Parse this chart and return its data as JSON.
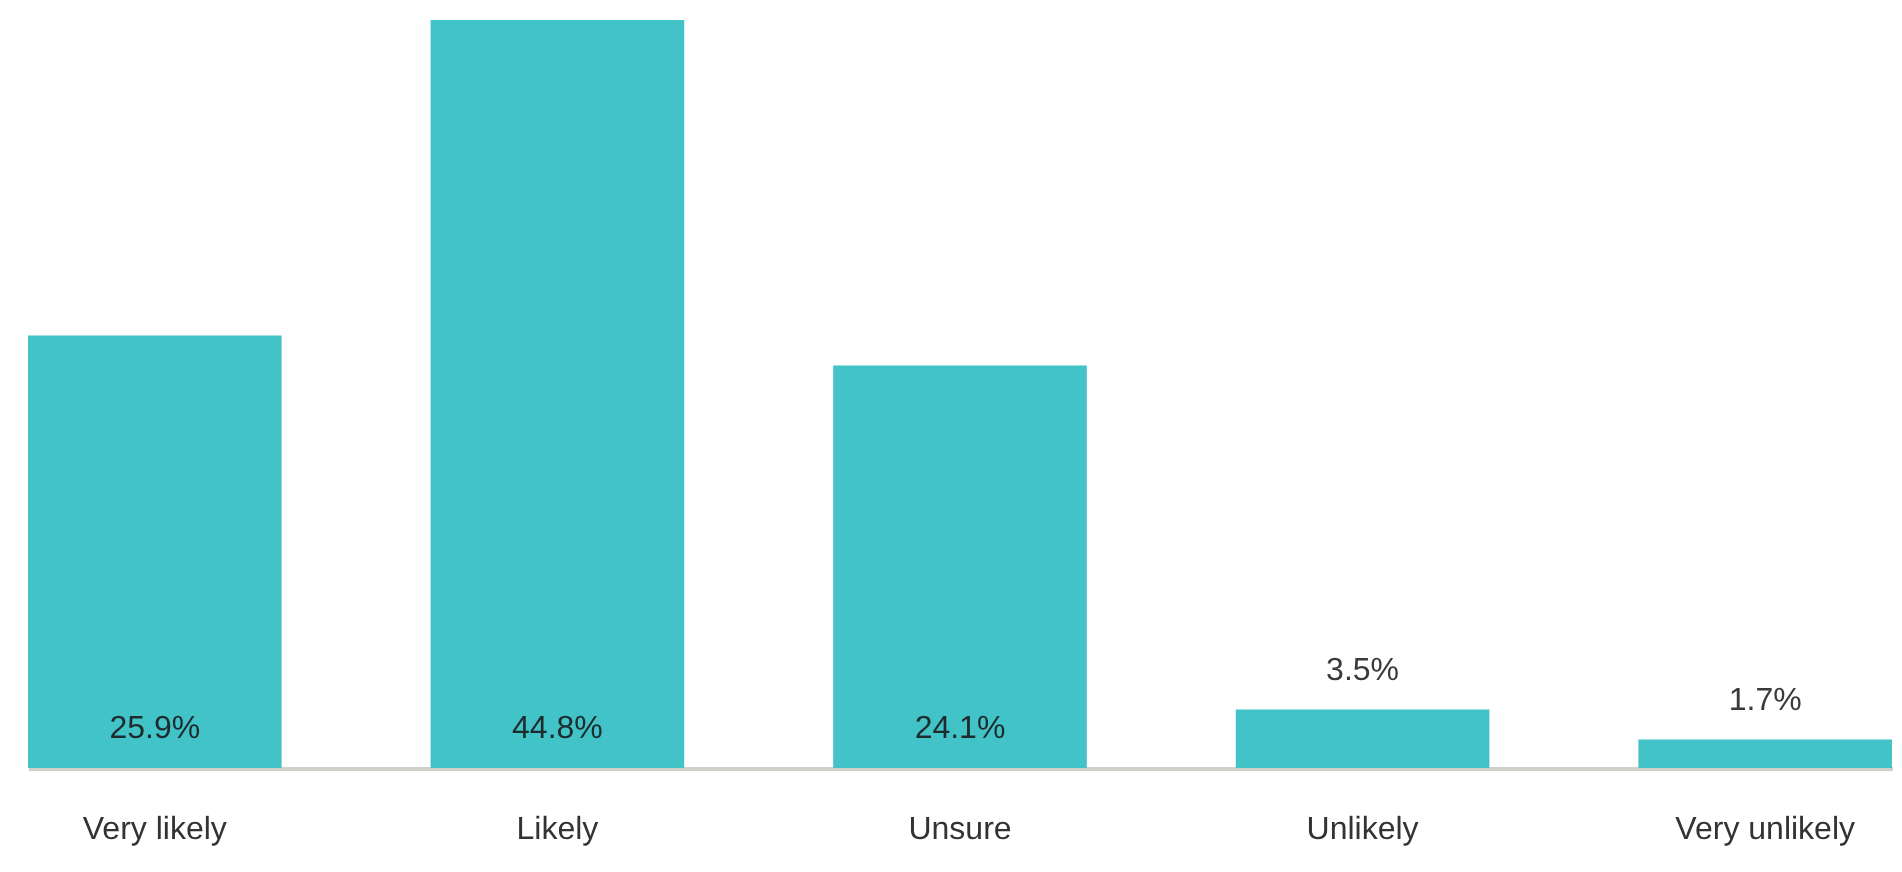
{
  "chart_data": {
    "type": "bar",
    "categories": [
      "Very likely",
      "Likely",
      "Unsure",
      "Unlikely",
      "Very unlikely"
    ],
    "values": [
      25.9,
      44.8,
      24.1,
      3.5,
      1.7
    ],
    "color": "#41c3c8",
    "value_labels": [
      "25.9%",
      "44.8%",
      "24.1%",
      "3.5%",
      "1.7%"
    ],
    "tick_labels": "x"
  }
}
